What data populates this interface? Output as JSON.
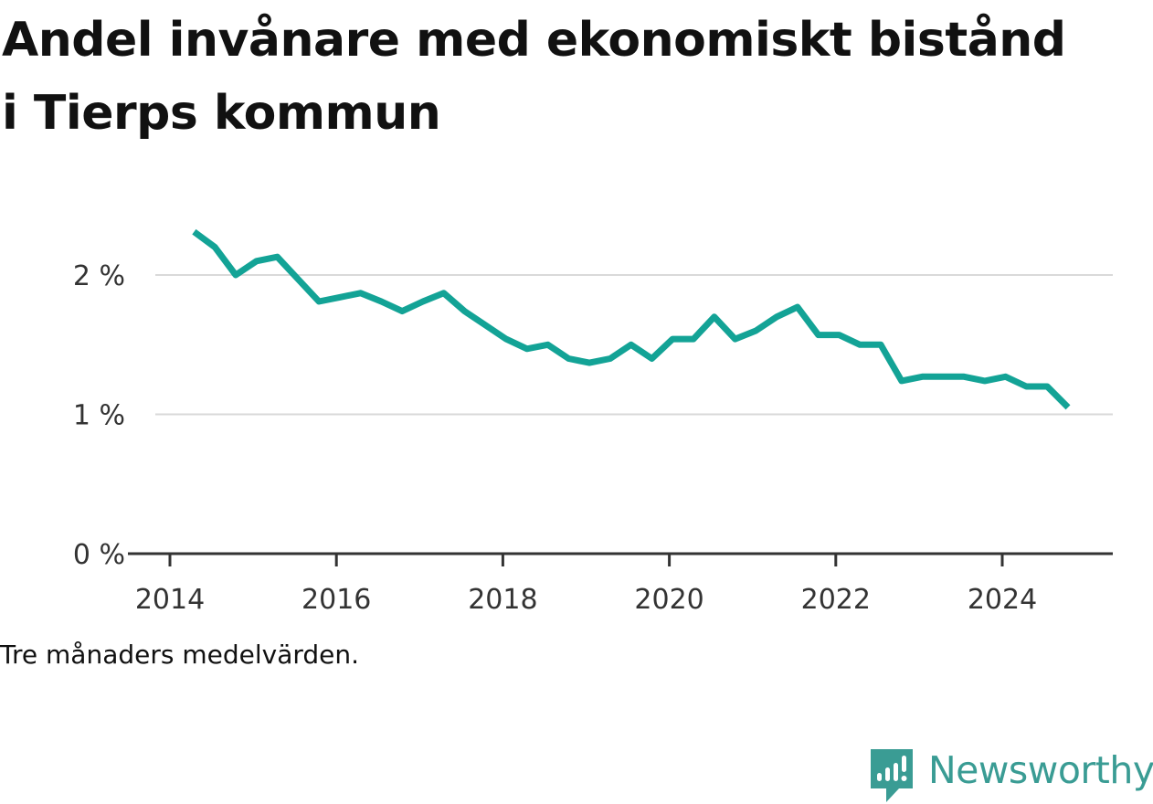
{
  "title": "Andel invånare med ekonomiskt bistånd i Tierps kommun",
  "note": "Tre månaders medelvärden.",
  "brand": {
    "name": "Newsworthy",
    "icon": "newsworthy-logo-icon",
    "color": "#3a9c94"
  },
  "chart_data": {
    "type": "line",
    "title": "Andel invånare med ekonomiskt bistånd i Tierps kommun",
    "xlabel": "",
    "ylabel": "",
    "xlim": [
      2013.8,
      2025.7
    ],
    "ylim": [
      0,
      2.5
    ],
    "grid": true,
    "line_color": "#13a396",
    "x_ticks": [
      {
        "value": 2014,
        "label": "2014"
      },
      {
        "value": 2016,
        "label": "2016"
      },
      {
        "value": 2018,
        "label": "2018"
      },
      {
        "value": 2020,
        "label": "2020"
      },
      {
        "value": 2022,
        "label": "2022"
      },
      {
        "value": 2024,
        "label": "2024"
      }
    ],
    "y_ticks": [
      {
        "value": 0,
        "label": "0 %"
      },
      {
        "value": 1,
        "label": "1 %"
      },
      {
        "value": 2,
        "label": "2 %"
      }
    ],
    "series": [
      {
        "name": "Andel invånare med ekonomiskt bistånd",
        "x": [
          2014.29,
          2014.54,
          2014.79,
          2015.04,
          2015.29,
          2015.54,
          2015.79,
          2016.04,
          2016.29,
          2016.54,
          2016.79,
          2017.04,
          2017.29,
          2017.54,
          2017.79,
          2018.04,
          2018.29,
          2018.54,
          2018.79,
          2019.04,
          2019.29,
          2019.54,
          2019.79,
          2020.04,
          2020.29,
          2020.54,
          2020.79,
          2021.04,
          2021.29,
          2021.54,
          2021.79,
          2022.04,
          2022.29,
          2022.54,
          2022.79,
          2023.04,
          2023.29,
          2023.54,
          2023.79,
          2024.04,
          2024.29,
          2024.54,
          2024.79
        ],
        "y": [
          2.31,
          2.2,
          2.0,
          2.1,
          2.13,
          1.97,
          1.81,
          1.84,
          1.87,
          1.81,
          1.74,
          1.81,
          1.87,
          1.74,
          1.64,
          1.54,
          1.47,
          1.5,
          1.4,
          1.37,
          1.4,
          1.5,
          1.4,
          1.54,
          1.54,
          1.7,
          1.54,
          1.6,
          1.7,
          1.77,
          1.57,
          1.57,
          1.5,
          1.5,
          1.24,
          1.27,
          1.27,
          1.27,
          1.24,
          1.27,
          1.2,
          1.2,
          1.05
        ]
      }
    ]
  }
}
